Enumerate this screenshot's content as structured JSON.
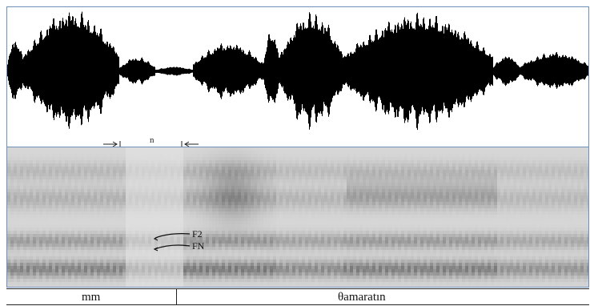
{
  "figure": {
    "tier_labels": {
      "left": "mm",
      "right": "θamaratın"
    },
    "segment_label": "n",
    "formant_labels": {
      "f2": "F2",
      "fn": "FN"
    }
  },
  "icons": {
    "left_arrow": "right-pointing-arrow-icon",
    "right_arrow": "left-pointing-arrow-icon"
  },
  "colors": {
    "panel_border": "#6f8fb8",
    "waveform": "#000000",
    "spectrogram_dark": "#0e0e0e",
    "spectrogram_mid": "#6b6b6b",
    "spectrogram_light": "#f2f2f2"
  }
}
